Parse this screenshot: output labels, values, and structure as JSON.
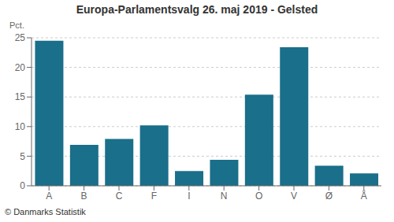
{
  "chart_data": {
    "type": "bar",
    "title": "Europa-Parlamentsvalg 26. maj 2019 - Gelsted",
    "ylabel": "Pct.",
    "annotations": [
      "© Danmarks Statistik"
    ],
    "categories": [
      "A",
      "B",
      "C",
      "F",
      "I",
      "N",
      "O",
      "V",
      "Ø",
      "Å"
    ],
    "values": [
      24.5,
      6.9,
      7.9,
      10.2,
      2.5,
      4.4,
      15.4,
      23.4,
      3.4,
      2.1
    ],
    "color": "#1a6f8a",
    "ylim": [
      0,
      25
    ],
    "yticks": [
      0,
      5,
      10,
      15,
      20,
      25
    ],
    "grid": true
  }
}
